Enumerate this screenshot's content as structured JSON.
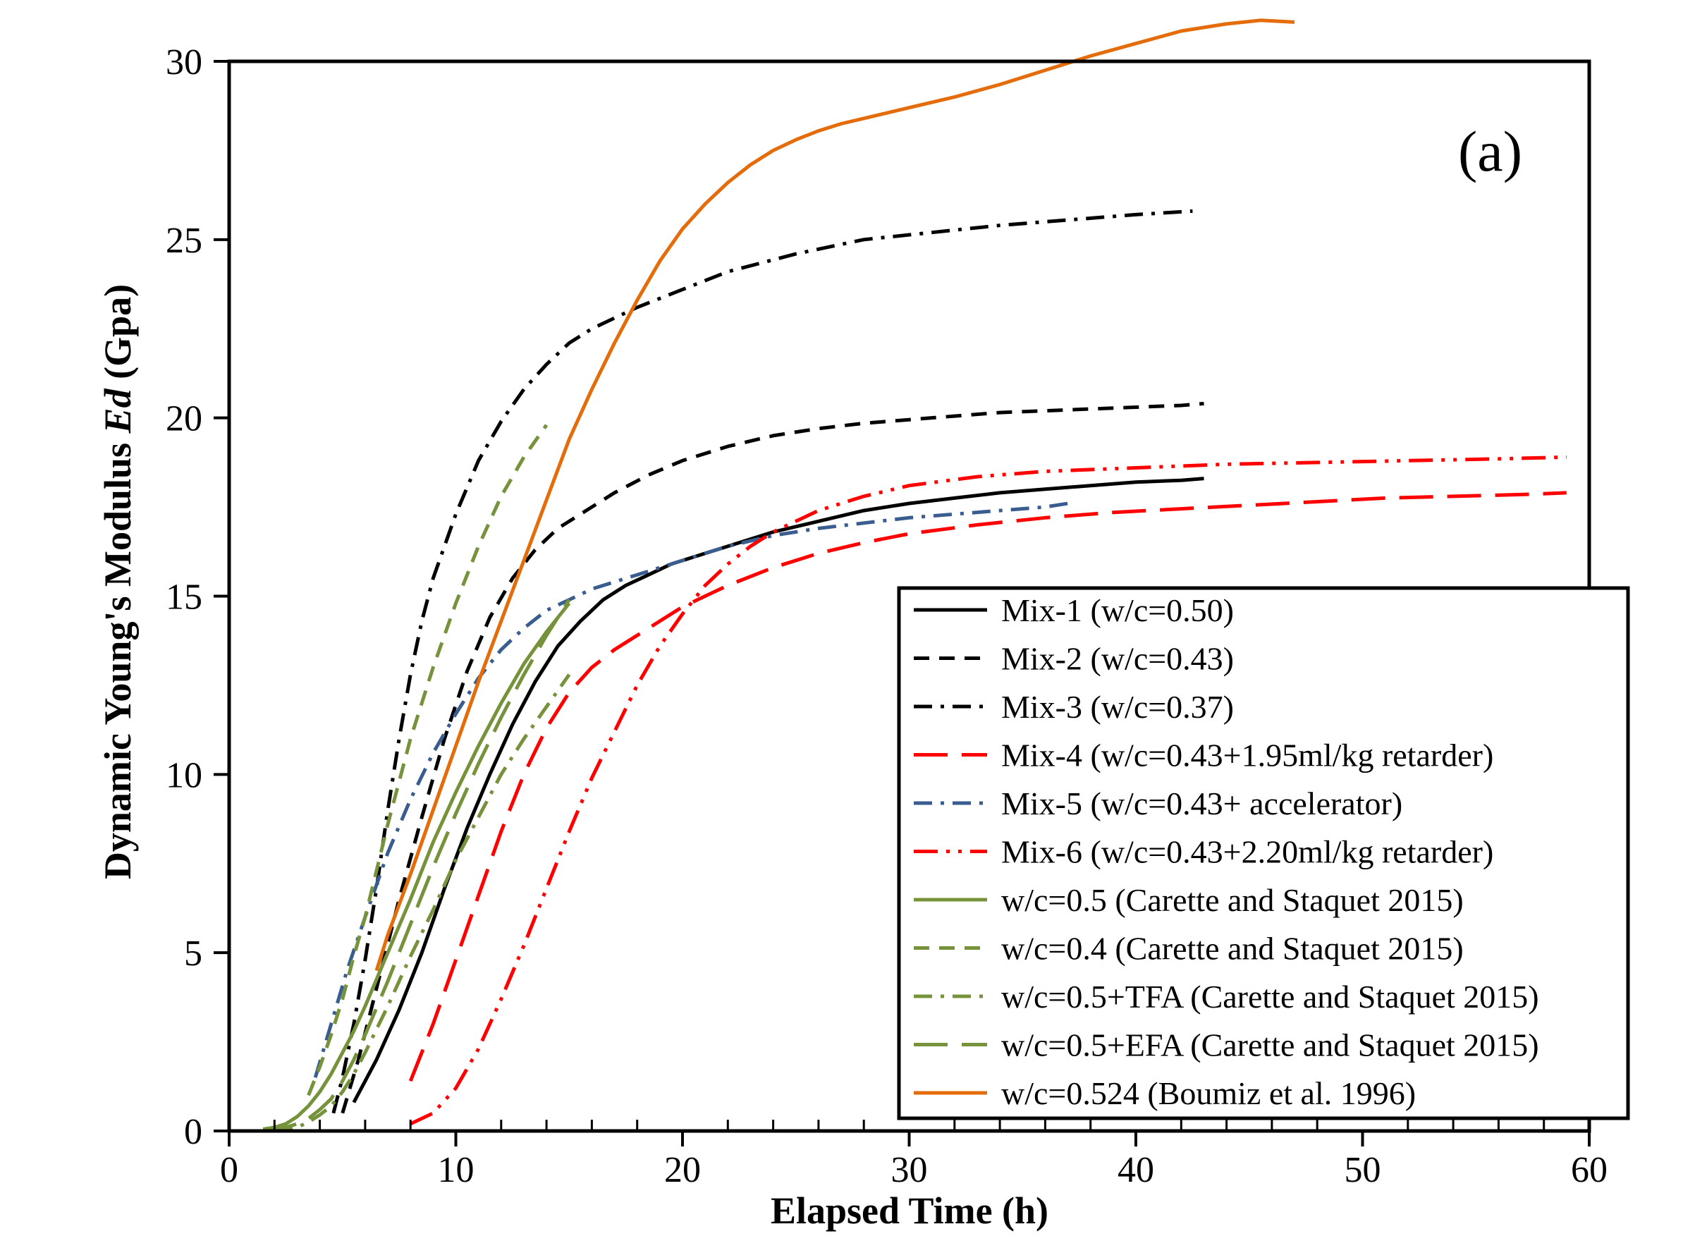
{
  "chart_data": {
    "type": "line",
    "title": "",
    "annotation": "(a)",
    "xlabel": "Elapsed Time (h)",
    "ylabel_prefix": "Dynamic Young's Modulus ",
    "ylabel_italic": "Ed",
    "ylabel_suffix": " (Gpa)",
    "xlim": [
      0,
      60
    ],
    "ylim": [
      0,
      30
    ],
    "xticks": [
      0,
      10,
      20,
      30,
      40,
      50,
      60
    ],
    "yticks": [
      0,
      5,
      10,
      15,
      20,
      25,
      30
    ],
    "grid": false,
    "legend_position": "bottom-right",
    "series": [
      {
        "name": "Mix-1 (w/c=0.50)",
        "color": "#000000",
        "style": "solid",
        "x": [
          5.5,
          6.5,
          7.5,
          8.5,
          9.5,
          10.5,
          11.5,
          12.5,
          13.5,
          14.5,
          15.5,
          16.5,
          17.5,
          18.5,
          19.5,
          20.5,
          22,
          24,
          26,
          28,
          30,
          32,
          34,
          36,
          38,
          40,
          42,
          43
        ],
        "y": [
          0.8,
          2.0,
          3.4,
          5.0,
          6.8,
          8.5,
          10.0,
          11.4,
          12.6,
          13.6,
          14.3,
          14.9,
          15.3,
          15.6,
          15.9,
          16.1,
          16.4,
          16.8,
          17.1,
          17.4,
          17.6,
          17.75,
          17.9,
          18.0,
          18.1,
          18.2,
          18.25,
          18.3
        ]
      },
      {
        "name": "Mix-2 (w/c=0.43)",
        "color": "#000000",
        "style": "dashed",
        "x": [
          5.0,
          5.7,
          6.5,
          7.5,
          8.5,
          9.5,
          10.5,
          11.5,
          12.5,
          13.5,
          14.5,
          15.5,
          17,
          18.5,
          20,
          22,
          24,
          26,
          28,
          30,
          32,
          34,
          36,
          38,
          40,
          42,
          43
        ],
        "y": [
          0.5,
          2.0,
          4.0,
          6.5,
          8.8,
          11.0,
          12.9,
          14.4,
          15.5,
          16.3,
          16.9,
          17.3,
          17.9,
          18.4,
          18.8,
          19.2,
          19.5,
          19.7,
          19.85,
          19.95,
          20.05,
          20.15,
          20.2,
          20.25,
          20.3,
          20.35,
          20.4
        ]
      },
      {
        "name": "Mix-3 (w/c=0.37)",
        "color": "#000000",
        "style": "dashdot",
        "x": [
          4.6,
          5.0,
          5.5,
          6.0,
          6.5,
          7.0,
          7.5,
          8.0,
          8.5,
          9.0,
          10.0,
          11.0,
          12.0,
          13.0,
          14.0,
          15.0,
          16.0,
          17.0,
          18.0,
          20.0,
          22.0,
          25.0,
          28.0,
          31.0,
          34.0,
          37.0,
          40.0,
          42.5
        ],
        "y": [
          0.5,
          1.5,
          3.0,
          4.8,
          6.8,
          9.0,
          11.0,
          12.8,
          14.3,
          15.5,
          17.3,
          18.8,
          19.9,
          20.8,
          21.5,
          22.1,
          22.5,
          22.8,
          23.1,
          23.6,
          24.1,
          24.6,
          25.0,
          25.2,
          25.4,
          25.55,
          25.7,
          25.8
        ]
      },
      {
        "name": "Mix-4 (w/c=0.43+1.95ml/kg retarder)",
        "color": "#ff0000",
        "style": "longdash",
        "x": [
          8.0,
          9.0,
          10.0,
          11.0,
          12.0,
          13.0,
          14.0,
          15.0,
          16.0,
          17.0,
          18.0,
          19.0,
          20.0,
          22.0,
          24.0,
          26.0,
          28.0,
          30.0,
          33.0,
          36.0,
          39.0,
          42.0,
          45.0,
          48.0,
          51.0,
          54.0,
          57.0,
          59.0
        ],
        "y": [
          1.4,
          3.0,
          4.8,
          6.6,
          8.4,
          10.0,
          11.3,
          12.3,
          13.0,
          13.5,
          13.9,
          14.3,
          14.7,
          15.3,
          15.8,
          16.2,
          16.5,
          16.75,
          17.0,
          17.2,
          17.35,
          17.45,
          17.55,
          17.65,
          17.75,
          17.8,
          17.85,
          17.9
        ]
      },
      {
        "name": "Mix-5 (w/c=0.43+ accelerator)",
        "color": "#3a5d8f",
        "style": "dashdot",
        "x": [
          3.8,
          4.5,
          5.2,
          6.0,
          7.0,
          8.0,
          9.0,
          10.0,
          11.0,
          12.0,
          13.0,
          14.0,
          15.0,
          16.0,
          17.0,
          18.0,
          19.0,
          20.0,
          22.0,
          24.0,
          26.0,
          28.0,
          30.0,
          32.0,
          34.0,
          36.0,
          37.0
        ],
        "y": [
          1.5,
          3.0,
          4.5,
          6.0,
          7.8,
          9.3,
          10.6,
          11.7,
          12.7,
          13.5,
          14.1,
          14.6,
          14.9,
          15.2,
          15.4,
          15.6,
          15.8,
          16.0,
          16.4,
          16.7,
          16.9,
          17.05,
          17.2,
          17.3,
          17.4,
          17.5,
          17.6
        ]
      },
      {
        "name": "Mix-6 (w/c=0.43+2.20ml/kg retarder)",
        "color": "#ff0000",
        "style": "dashdotdot",
        "x": [
          8.0,
          9.0,
          10.0,
          11.0,
          12.0,
          13.0,
          14.0,
          15.0,
          16.0,
          17.0,
          18.0,
          19.0,
          20.0,
          21.0,
          22.0,
          23.0,
          24.0,
          26.0,
          28.0,
          30.0,
          33.0,
          36.0,
          40.0,
          44.0,
          48.0,
          52.0,
          56.0,
          59.0
        ],
        "y": [
          0.2,
          0.5,
          1.2,
          2.3,
          3.7,
          5.2,
          6.8,
          8.4,
          9.9,
          11.2,
          12.5,
          13.6,
          14.5,
          15.3,
          15.9,
          16.4,
          16.8,
          17.4,
          17.8,
          18.1,
          18.35,
          18.5,
          18.6,
          18.7,
          18.75,
          18.8,
          18.85,
          18.9
        ]
      },
      {
        "name": "w/c=0.5 (Carette and Staquet 2015)",
        "color": "#76933c",
        "style": "solid",
        "x": [
          1.5,
          2.0,
          2.5,
          3.0,
          3.5,
          4.0,
          4.5,
          5.0,
          5.5,
          6.0,
          7.0,
          8.0,
          9.0,
          10.0,
          11.0,
          12.0,
          13.0,
          14.0,
          15.0
        ],
        "y": [
          0.05,
          0.1,
          0.2,
          0.4,
          0.7,
          1.1,
          1.6,
          2.2,
          2.8,
          3.5,
          5.0,
          6.5,
          8.1,
          9.5,
          10.8,
          12.0,
          13.1,
          14.0,
          14.8
        ]
      },
      {
        "name": "w/c=0.4 (Carette and Staquet 2015)",
        "color": "#76933c",
        "style": "dashed",
        "x": [
          3.5,
          4.0,
          4.5,
          5.0,
          5.5,
          6.0,
          6.5,
          7.0,
          7.5,
          8.0,
          9.0,
          10.0,
          11.0,
          12.0,
          13.0,
          14.0
        ],
        "y": [
          1.0,
          1.8,
          2.7,
          3.7,
          4.9,
          6.0,
          7.3,
          8.6,
          9.8,
          11.0,
          13.0,
          14.8,
          16.4,
          17.8,
          18.9,
          19.8
        ]
      },
      {
        "name": "w/c=0.5+TFA (Carette and Staquet 2015)",
        "color": "#76933c",
        "style": "dashdot",
        "x": [
          2.0,
          2.5,
          3.0,
          3.5,
          4.0,
          4.5,
          5.0,
          5.5,
          6.0,
          7.0,
          8.0,
          9.0,
          10.0,
          11.0,
          12.0,
          13.0,
          14.0,
          15.0
        ],
        "y": [
          0.0,
          0.05,
          0.1,
          0.25,
          0.45,
          0.7,
          1.1,
          1.6,
          2.2,
          3.5,
          4.9,
          6.2,
          7.6,
          8.8,
          10.0,
          11.0,
          11.9,
          12.8
        ]
      },
      {
        "name": "w/c=0.5+EFA (Carette and Staquet 2015)",
        "color": "#76933c",
        "style": "longdash",
        "x": [
          1.5,
          2.0,
          2.5,
          3.0,
          3.5,
          4.0,
          4.5,
          5.0,
          5.5,
          6.0,
          7.0,
          8.0,
          9.0,
          10.0,
          11.0,
          12.0,
          13.0,
          14.0,
          15.0
        ],
        "y": [
          0.0,
          0.05,
          0.1,
          0.2,
          0.35,
          0.6,
          0.9,
          1.4,
          2.0,
          2.7,
          4.2,
          5.8,
          7.4,
          8.9,
          10.3,
          11.6,
          12.8,
          13.9,
          14.9
        ]
      },
      {
        "name": "w/c=0.524 (Boumiz et al. 1996)",
        "color": "#e46c0a",
        "style": "solid",
        "x": [
          6.5,
          7.0,
          8.0,
          9.0,
          10.0,
          11.0,
          12.0,
          13.0,
          14.0,
          15.0,
          16.0,
          17.0,
          18.0,
          19.0,
          20.0,
          21.0,
          22.0,
          23.0,
          24.0,
          25.0,
          26.0,
          27.0,
          28.0,
          30.0,
          32.0,
          34.0,
          36.0,
          38.0,
          40.0,
          42.0,
          44.0,
          45.5,
          47.0
        ],
        "y": [
          4.5,
          5.5,
          7.2,
          9.0,
          10.8,
          12.6,
          14.3,
          16.0,
          17.7,
          19.4,
          20.8,
          22.1,
          23.3,
          24.4,
          25.3,
          26.0,
          26.6,
          27.1,
          27.5,
          27.8,
          28.05,
          28.25,
          28.4,
          28.7,
          29.0,
          29.35,
          29.75,
          30.15,
          30.5,
          30.85,
          31.05,
          31.15,
          31.1
        ]
      }
    ]
  }
}
